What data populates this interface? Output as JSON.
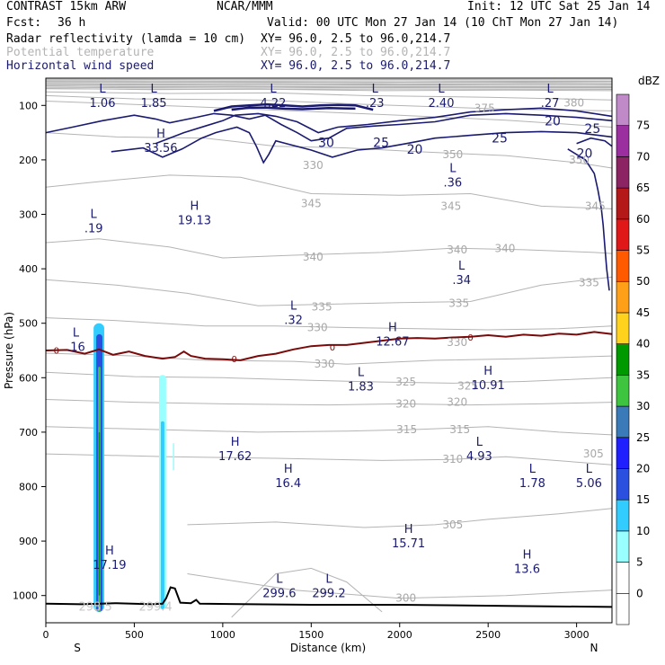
{
  "header": {
    "model": "CONTRAST 15km ARW",
    "org": "NCAR/MMM",
    "init": "Init: 12 UTC Sat 25 Jan 14",
    "fcst_label": "Fcst:",
    "fcst_value": "36 h",
    "valid": "Valid: 00 UTC Mon 27 Jan 14 (10 ChT Mon 27 Jan 14)",
    "fields": [
      {
        "name": "Radar reflectivity (lamda = 10 cm)",
        "xy": "XY=  96.0,  2.5 to  96.0,214.7",
        "color": "#000000"
      },
      {
        "name": "Potential temperature",
        "xy": "XY=  96.0,  2.5 to  96.0,214.7",
        "color": "#b4b4b4"
      },
      {
        "name": "Horizontal wind speed",
        "xy": "XY=  96.0,  2.5 to  96.0,214.7",
        "color": "#1a1a70"
      }
    ]
  },
  "chart_data": {
    "type": "cross-section",
    "xlabel": "Distance (km)",
    "ylabel": "Pressure (hPa)",
    "xlim": [
      0,
      3200
    ],
    "ylim": [
      1050,
      50
    ],
    "x_ticks": [
      0,
      500,
      1000,
      1500,
      2000,
      2500,
      3000
    ],
    "y_ticks": [
      100,
      200,
      300,
      400,
      500,
      600,
      700,
      800,
      900,
      1000
    ],
    "x_end_labels": {
      "left": "S",
      "right": "N"
    },
    "colorbar": {
      "unit": "dBZ",
      "levels": [
        0,
        5,
        10,
        15,
        20,
        25,
        30,
        35,
        40,
        45,
        50,
        55,
        60,
        65,
        70,
        75
      ],
      "colors": [
        "#ffffff",
        "#ffffff",
        "#99ffff",
        "#33ccff",
        "#2b50e0",
        "#2020ff",
        "#3a7ab8",
        "#3ec43e",
        "#009a00",
        "#ffd21e",
        "#ffa018",
        "#ff5a00",
        "#e01818",
        "#b41818",
        "#8c2464",
        "#9b2fa0",
        "#c08ac8"
      ]
    },
    "theta_isolines": [
      {
        "label": "380",
        "x": 2985,
        "p": 95
      },
      {
        "label": "375",
        "x": 2480,
        "p": 105
      },
      {
        "label": "350",
        "x": 2300,
        "p": 190
      },
      {
        "label": "350",
        "x": 3015,
        "p": 200
      },
      {
        "label": "330",
        "x": 1510,
        "p": 210
      },
      {
        "label": "345",
        "x": 1500,
        "p": 280
      },
      {
        "label": "345",
        "x": 2290,
        "p": 285
      },
      {
        "label": "345",
        "x": 3105,
        "p": 285
      },
      {
        "label": "340",
        "x": 1510,
        "p": 378
      },
      {
        "label": "340",
        "x": 2325,
        "p": 365
      },
      {
        "label": "340",
        "x": 2595,
        "p": 363
      },
      {
        "label": "335",
        "x": 3070,
        "p": 425
      },
      {
        "label": "335",
        "x": 1560,
        "p": 470
      },
      {
        "label": "335",
        "x": 2335,
        "p": 463
      },
      {
        "label": "330",
        "x": 1535,
        "p": 508
      },
      {
        "label": "330",
        "x": 2325,
        "p": 535
      },
      {
        "label": "330",
        "x": 1575,
        "p": 575
      },
      {
        "label": "325",
        "x": 2035,
        "p": 608
      },
      {
        "label": "325",
        "x": 2385,
        "p": 615
      },
      {
        "label": "320",
        "x": 2035,
        "p": 648
      },
      {
        "label": "320",
        "x": 2325,
        "p": 645
      },
      {
        "label": "315",
        "x": 2040,
        "p": 695
      },
      {
        "label": "315",
        "x": 2340,
        "p": 695
      },
      {
        "label": "310",
        "x": 2300,
        "p": 750
      },
      {
        "label": "305",
        "x": 3095,
        "p": 740
      },
      {
        "label": "305",
        "x": 2300,
        "p": 870
      },
      {
        "label": "300",
        "x": 2035,
        "p": 1005
      }
    ],
    "wind_isotachs": [
      {
        "label": "30",
        "x": 1585,
        "p": 168
      },
      {
        "label": "25",
        "x": 1895,
        "p": 168
      },
      {
        "label": "25",
        "x": 2565,
        "p": 160
      },
      {
        "label": "20",
        "x": 2085,
        "p": 180
      },
      {
        "label": "20",
        "x": 2865,
        "p": 128
      },
      {
        "label": "25",
        "x": 3090,
        "p": 142
      },
      {
        "label": "20",
        "x": 3045,
        "p": 188
      }
    ],
    "zero_line_labels": [
      {
        "label": "0",
        "x": 60,
        "p": 549
      },
      {
        "label": "0",
        "x": 1065,
        "p": 565
      },
      {
        "label": "0",
        "x": 1620,
        "p": 543
      },
      {
        "label": "0",
        "x": 2400,
        "p": 525
      }
    ],
    "extrema": [
      {
        "kind": "L",
        "value": "1.06",
        "x": 320,
        "p": 80
      },
      {
        "kind": "L",
        "value": "1.85",
        "x": 610,
        "p": 80
      },
      {
        "kind": "L",
        "value": "4.22",
        "x": 1285,
        "p": 80
      },
      {
        "kind": "L",
        "value": ".23",
        "x": 1860,
        "p": 80
      },
      {
        "kind": "L",
        "value": "2.40",
        "x": 2235,
        "p": 80
      },
      {
        "kind": "L",
        "value": ".27",
        "x": 2850,
        "p": 80
      },
      {
        "kind": "H",
        "value": "33.56",
        "x": 650,
        "p": 162
      },
      {
        "kind": "L",
        "value": ".36",
        "x": 2300,
        "p": 226
      },
      {
        "kind": "H",
        "value": "19.13",
        "x": 840,
        "p": 295
      },
      {
        "kind": "L",
        "value": ".19",
        "x": 270,
        "p": 310
      },
      {
        "kind": "L",
        "value": ".34",
        "x": 2350,
        "p": 405
      },
      {
        "kind": "L",
        "value": ".32",
        "x": 1400,
        "p": 478
      },
      {
        "kind": "H",
        "value": "12.67",
        "x": 1960,
        "p": 518
      },
      {
        "kind": "L",
        "value": ".16",
        "x": 170,
        "p": 528
      },
      {
        "kind": "L",
        "value": "1.83",
        "x": 1780,
        "p": 600
      },
      {
        "kind": "H",
        "value": "10.91",
        "x": 2500,
        "p": 598
      },
      {
        "kind": "H",
        "value": "17.62",
        "x": 1070,
        "p": 728
      },
      {
        "kind": "L",
        "value": "4.93",
        "x": 2450,
        "p": 728
      },
      {
        "kind": "H",
        "value": "16.4",
        "x": 1370,
        "p": 778
      },
      {
        "kind": "L",
        "value": "1.78",
        "x": 2750,
        "p": 778
      },
      {
        "kind": "L",
        "value": "5.06",
        "x": 3070,
        "p": 778
      },
      {
        "kind": "H",
        "value": "15.71",
        "x": 2050,
        "p": 888
      },
      {
        "kind": "H",
        "value": "17.19",
        "x": 360,
        "p": 928
      },
      {
        "kind": "H",
        "value": "13.6",
        "x": 2720,
        "p": 935
      },
      {
        "kind": "L",
        "value": "299.6",
        "x": 1320,
        "p": 980
      },
      {
        "kind": "L",
        "value": "299.2",
        "x": 1600,
        "p": 980
      }
    ],
    "hidden_labels": [
      "298.5",
      "299.4"
    ]
  }
}
